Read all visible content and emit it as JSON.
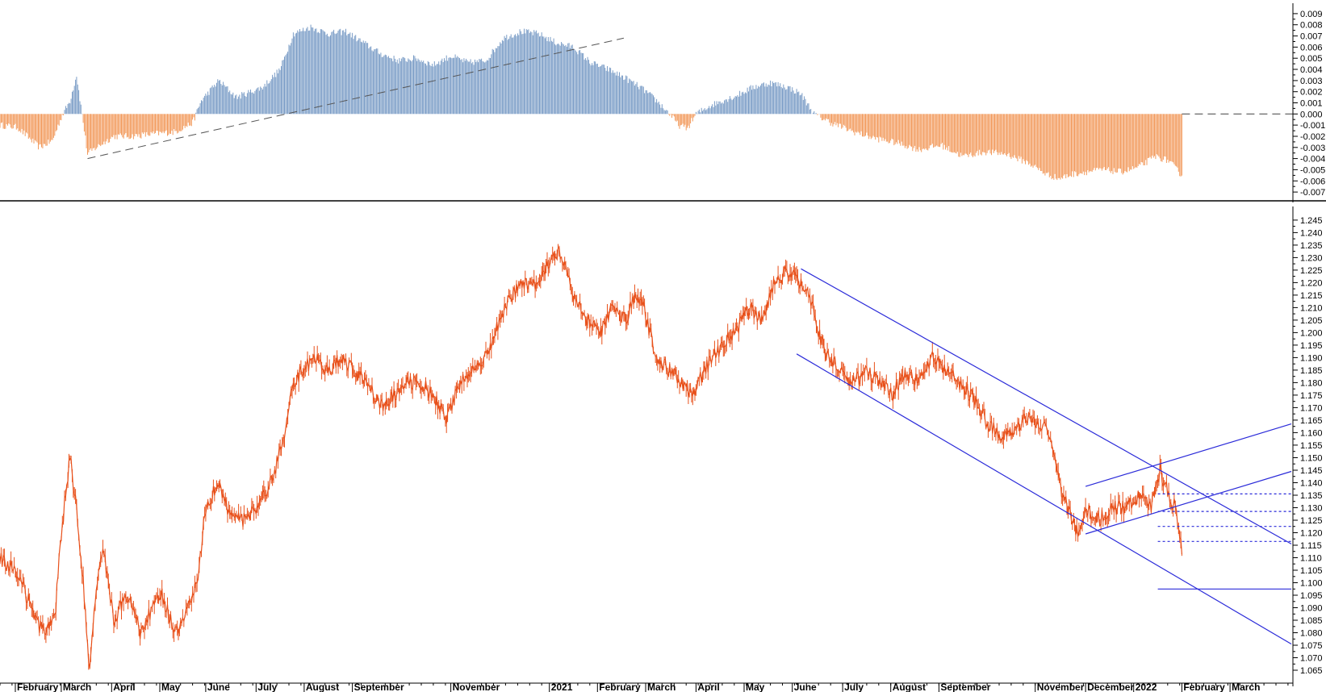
{
  "colors": {
    "positive_bar": "#7a9cc6",
    "negative_bar": "#f29a5c",
    "price_line": "#e8501a",
    "trend_line": "#2b2bd9",
    "dash_line": "#555555",
    "separator": "#000000"
  },
  "chart_data": [
    {
      "type": "bar",
      "panel": "oscillator",
      "ylim": [
        -0.0075,
        0.0095
      ],
      "yticks": [
        "0.009",
        "0.008",
        "0.007",
        "0.006",
        "0.005",
        "0.004",
        "0.003",
        "0.002",
        "0.001",
        "0.000",
        "-0.001",
        "-0.002",
        "-0.003",
        "-0.004",
        "-0.005",
        "-0.006",
        "-0.007"
      ],
      "ytick_values": [
        0.009,
        0.008,
        0.007,
        0.006,
        0.005,
        0.004,
        0.003,
        0.002,
        0.001,
        0.0,
        -0.001,
        -0.002,
        -0.003,
        -0.004,
        -0.005,
        -0.006,
        -0.007
      ],
      "x_range": [
        0,
        540
      ],
      "keypoints": [
        [
          0,
          -0.001
        ],
        [
          8,
          -0.0012
        ],
        [
          18,
          -0.003
        ],
        [
          24,
          -0.0024
        ],
        [
          28,
          -0.0003
        ],
        [
          32,
          0.0012
        ],
        [
          35,
          0.0035
        ],
        [
          37,
          0.0007
        ],
        [
          40,
          -0.0036
        ],
        [
          44,
          -0.003
        ],
        [
          52,
          -0.002
        ],
        [
          60,
          -0.002
        ],
        [
          70,
          -0.0018
        ],
        [
          80,
          -0.0016
        ],
        [
          88,
          -0.0008
        ],
        [
          92,
          0.0012
        ],
        [
          100,
          0.003
        ],
        [
          108,
          0.0015
        ],
        [
          120,
          0.0024
        ],
        [
          128,
          0.004
        ],
        [
          134,
          0.0072
        ],
        [
          142,
          0.0078
        ],
        [
          150,
          0.0072
        ],
        [
          158,
          0.0074
        ],
        [
          166,
          0.0064
        ],
        [
          174,
          0.0054
        ],
        [
          182,
          0.0048
        ],
        [
          190,
          0.005
        ],
        [
          198,
          0.0044
        ],
        [
          206,
          0.0052
        ],
        [
          214,
          0.0046
        ],
        [
          222,
          0.0048
        ],
        [
          230,
          0.0068
        ],
        [
          238,
          0.0074
        ],
        [
          246,
          0.0072
        ],
        [
          254,
          0.0064
        ],
        [
          262,
          0.006
        ],
        [
          270,
          0.0046
        ],
        [
          278,
          0.004
        ],
        [
          286,
          0.0032
        ],
        [
          294,
          0.0022
        ],
        [
          300,
          0.0012
        ],
        [
          306,
          0.0
        ],
        [
          310,
          -0.001
        ],
        [
          314,
          -0.0013
        ],
        [
          318,
          0.0
        ],
        [
          324,
          0.0007
        ],
        [
          330,
          0.0012
        ],
        [
          336,
          0.0016
        ],
        [
          344,
          0.0024
        ],
        [
          352,
          0.0028
        ],
        [
          360,
          0.0024
        ],
        [
          366,
          0.0018
        ],
        [
          372,
          0.0
        ],
        [
          380,
          -0.0008
        ],
        [
          390,
          -0.0016
        ],
        [
          400,
          -0.0022
        ],
        [
          410,
          -0.0026
        ],
        [
          420,
          -0.0032
        ],
        [
          430,
          -0.0028
        ],
        [
          440,
          -0.0038
        ],
        [
          450,
          -0.0034
        ],
        [
          460,
          -0.0036
        ],
        [
          470,
          -0.0044
        ],
        [
          478,
          -0.0054
        ],
        [
          484,
          -0.0058
        ],
        [
          490,
          -0.0054
        ],
        [
          496,
          -0.0052
        ],
        [
          504,
          -0.005
        ],
        [
          512,
          -0.0052
        ],
        [
          520,
          -0.0048
        ],
        [
          528,
          -0.0038
        ],
        [
          534,
          -0.0042
        ],
        [
          540,
          -0.0055
        ]
      ],
      "zero_reference": 0.0,
      "trendlines": [
        {
          "x": [
            40,
            285
          ],
          "y": [
            -0.004,
            0.0068
          ],
          "style": "dashed"
        }
      ]
    },
    {
      "type": "line",
      "panel": "price",
      "ylim": [
        1.0605,
        1.2485
      ],
      "yticks": [
        "1.245",
        "1.240",
        "1.235",
        "1.230",
        "1.225",
        "1.220",
        "1.215",
        "1.210",
        "1.205",
        "1.200",
        "1.195",
        "1.190",
        "1.185",
        "1.180",
        "1.175",
        "1.170",
        "1.165",
        "1.160",
        "1.155",
        "1.150",
        "1.145",
        "1.140",
        "1.135",
        "1.130",
        "1.125",
        "1.120",
        "1.115",
        "1.110",
        "1.105",
        "1.100",
        "1.095",
        "1.090",
        "1.085",
        "1.080",
        "1.075",
        "1.070",
        "1.065"
      ],
      "ytick_values": [
        1.245,
        1.24,
        1.235,
        1.23,
        1.225,
        1.22,
        1.215,
        1.21,
        1.205,
        1.2,
        1.195,
        1.19,
        1.185,
        1.18,
        1.175,
        1.17,
        1.165,
        1.16,
        1.155,
        1.15,
        1.145,
        1.14,
        1.135,
        1.13,
        1.125,
        1.12,
        1.115,
        1.11,
        1.105,
        1.1,
        1.095,
        1.09,
        1.085,
        1.08,
        1.075,
        1.07,
        1.065
      ],
      "x_range": [
        0,
        540
      ],
      "keypoints": [
        [
          0,
          1.11
        ],
        [
          6,
          1.105
        ],
        [
          10,
          1.1
        ],
        [
          16,
          1.085
        ],
        [
          20,
          1.08
        ],
        [
          25,
          1.085
        ],
        [
          28,
          1.12
        ],
        [
          32,
          1.15
        ],
        [
          35,
          1.13
        ],
        [
          38,
          1.1
        ],
        [
          41,
          1.065
        ],
        [
          44,
          1.1
        ],
        [
          47,
          1.115
        ],
        [
          52,
          1.085
        ],
        [
          58,
          1.095
        ],
        [
          64,
          1.08
        ],
        [
          70,
          1.09
        ],
        [
          74,
          1.095
        ],
        [
          80,
          1.08
        ],
        [
          86,
          1.09
        ],
        [
          90,
          1.1
        ],
        [
          94,
          1.13
        ],
        [
          100,
          1.14
        ],
        [
          106,
          1.125
        ],
        [
          112,
          1.125
        ],
        [
          118,
          1.13
        ],
        [
          124,
          1.14
        ],
        [
          130,
          1.16
        ],
        [
          134,
          1.18
        ],
        [
          138,
          1.185
        ],
        [
          144,
          1.19
        ],
        [
          150,
          1.185
        ],
        [
          156,
          1.19
        ],
        [
          162,
          1.185
        ],
        [
          168,
          1.18
        ],
        [
          174,
          1.17
        ],
        [
          180,
          1.175
        ],
        [
          186,
          1.18
        ],
        [
          192,
          1.18
        ],
        [
          198,
          1.175
        ],
        [
          204,
          1.165
        ],
        [
          210,
          1.18
        ],
        [
          216,
          1.185
        ],
        [
          222,
          1.19
        ],
        [
          228,
          1.205
        ],
        [
          234,
          1.215
        ],
        [
          240,
          1.22
        ],
        [
          246,
          1.22
        ],
        [
          252,
          1.23
        ],
        [
          256,
          1.232
        ],
        [
          262,
          1.215
        ],
        [
          268,
          1.205
        ],
        [
          274,
          1.2
        ],
        [
          280,
          1.21
        ],
        [
          286,
          1.205
        ],
        [
          290,
          1.215
        ],
        [
          294,
          1.21
        ],
        [
          300,
          1.19
        ],
        [
          306,
          1.185
        ],
        [
          312,
          1.18
        ],
        [
          316,
          1.175
        ],
        [
          322,
          1.185
        ],
        [
          330,
          1.195
        ],
        [
          336,
          1.2
        ],
        [
          342,
          1.21
        ],
        [
          348,
          1.205
        ],
        [
          354,
          1.22
        ],
        [
          360,
          1.225
        ],
        [
          366,
          1.22
        ],
        [
          370,
          1.215
        ],
        [
          374,
          1.2
        ],
        [
          378,
          1.19
        ],
        [
          384,
          1.185
        ],
        [
          390,
          1.18
        ],
        [
          396,
          1.185
        ],
        [
          402,
          1.18
        ],
        [
          408,
          1.175
        ],
        [
          414,
          1.185
        ],
        [
          420,
          1.18
        ],
        [
          426,
          1.19
        ],
        [
          432,
          1.185
        ],
        [
          438,
          1.18
        ],
        [
          444,
          1.175
        ],
        [
          450,
          1.165
        ],
        [
          456,
          1.16
        ],
        [
          462,
          1.16
        ],
        [
          468,
          1.165
        ],
        [
          474,
          1.165
        ],
        [
          480,
          1.16
        ],
        [
          484,
          1.14
        ],
        [
          488,
          1.13
        ],
        [
          492,
          1.12
        ],
        [
          496,
          1.13
        ],
        [
          502,
          1.125
        ],
        [
          508,
          1.13
        ],
        [
          514,
          1.13
        ],
        [
          520,
          1.135
        ],
        [
          526,
          1.13
        ],
        [
          530,
          1.145
        ],
        [
          534,
          1.135
        ],
        [
          537,
          1.13
        ],
        [
          539,
          1.12
        ],
        [
          540,
          1.113
        ]
      ],
      "trendlines": [
        {
          "x": [
            366,
            590
          ],
          "y": [
            1.2255,
            1.1155
          ],
          "style": "solid"
        },
        {
          "x": [
            364,
            590
          ],
          "y": [
            1.1915,
            1.0755
          ],
          "style": "solid"
        },
        {
          "x": [
            496,
            590
          ],
          "y": [
            1.1385,
            1.1635
          ],
          "style": "solid"
        },
        {
          "x": [
            496,
            590
          ],
          "y": [
            1.1195,
            1.1445
          ],
          "style": "solid"
        }
      ],
      "levels": [
        {
          "x": [
            529,
            590
          ],
          "y": 1.1355,
          "style": "dotted"
        },
        {
          "x": [
            529,
            590
          ],
          "y": 1.1285,
          "style": "dotted"
        },
        {
          "x": [
            529,
            590
          ],
          "y": 1.1225,
          "style": "dotted"
        },
        {
          "x": [
            529,
            590
          ],
          "y": 1.1165,
          "style": "dotted"
        },
        {
          "x": [
            529,
            590
          ],
          "y": 1.0975,
          "style": "solid"
        }
      ]
    }
  ],
  "x_axis": {
    "range": [
      0,
      590
    ],
    "labels": [
      {
        "text": "February",
        "x": 7
      },
      {
        "text": "March",
        "x": 28
      },
      {
        "text": "April",
        "x": 51
      },
      {
        "text": "May",
        "x": 73
      },
      {
        "text": "June",
        "x": 94
      },
      {
        "text": "July",
        "x": 117
      },
      {
        "text": "August",
        "x": 139
      },
      {
        "text": "September",
        "x": 161
      },
      {
        "text": "November",
        "x": 206
      },
      {
        "text": "2021",
        "x": 251
      },
      {
        "text": "February",
        "x": 273
      },
      {
        "text": "March",
        "x": 295
      },
      {
        "text": "April",
        "x": 318
      },
      {
        "text": "May",
        "x": 340
      },
      {
        "text": "June",
        "x": 362
      },
      {
        "text": "July",
        "x": 385
      },
      {
        "text": "August",
        "x": 407
      },
      {
        "text": "September",
        "x": 429
      },
      {
        "text": "November",
        "x": 473
      },
      {
        "text": "December",
        "x": 496
      },
      {
        "text": "2022",
        "x": 518
      },
      {
        "text": "February",
        "x": 540
      },
      {
        "text": "March",
        "x": 562
      }
    ]
  }
}
